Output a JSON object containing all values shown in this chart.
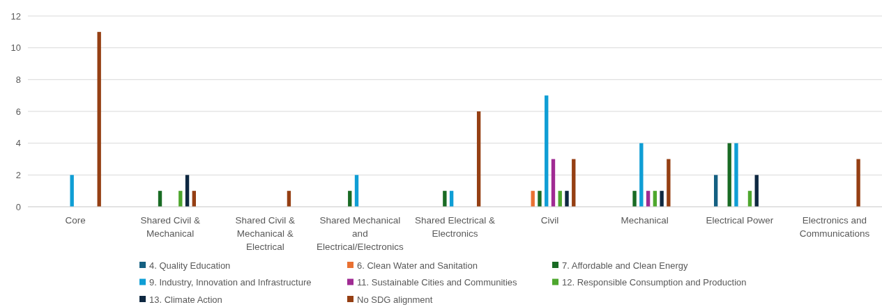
{
  "chart_data": {
    "type": "bar",
    "categories": [
      "Core",
      "Shared Civil & Mechanical",
      "Shared Civil & Mechanical & Electrical",
      "Shared Mechanical and Electrical/Electronics",
      "Shared Electrical & Electronics",
      "Civil",
      "Mechanical",
      "Electrical Power",
      "Electronics and Communications"
    ],
    "series": [
      {
        "name": "4. Quality Education",
        "color": "#156082",
        "values": [
          null,
          null,
          null,
          null,
          null,
          null,
          null,
          2,
          null
        ]
      },
      {
        "name": "6. Clean Water and Sanitation",
        "color": "#e97132",
        "values": [
          null,
          null,
          null,
          null,
          null,
          1,
          null,
          null,
          null
        ]
      },
      {
        "name": "7. Affordable and Clean Energy",
        "color": "#196b24",
        "values": [
          null,
          1,
          null,
          1,
          1,
          1,
          1,
          4,
          null
        ]
      },
      {
        "name": "9. Industry, Innovation and Infrastructure",
        "color": "#0f9ed5",
        "values": [
          2,
          null,
          null,
          2,
          1,
          7,
          4,
          4,
          null
        ]
      },
      {
        "name": "11. Sustainable Cities and Communities",
        "color": "#a02b93",
        "values": [
          null,
          null,
          null,
          null,
          null,
          3,
          1,
          null,
          null
        ]
      },
      {
        "name": "12. Responsible Consumption and Production",
        "color": "#4ea72e",
        "values": [
          null,
          1,
          null,
          null,
          null,
          1,
          1,
          1,
          null
        ]
      },
      {
        "name": "13. Climate Action",
        "color": "#0e2841",
        "values": [
          null,
          2,
          null,
          null,
          null,
          1,
          1,
          2,
          null
        ]
      },
      {
        "name": "No SDG alignment",
        "color": "#953f13",
        "values": [
          11,
          1,
          1,
          null,
          6,
          3,
          3,
          null,
          3
        ]
      }
    ],
    "ylim": [
      0,
      12
    ],
    "yticks": [
      0,
      2,
      4,
      6,
      8,
      10,
      12
    ],
    "grid": "y",
    "legend": "bottom"
  }
}
